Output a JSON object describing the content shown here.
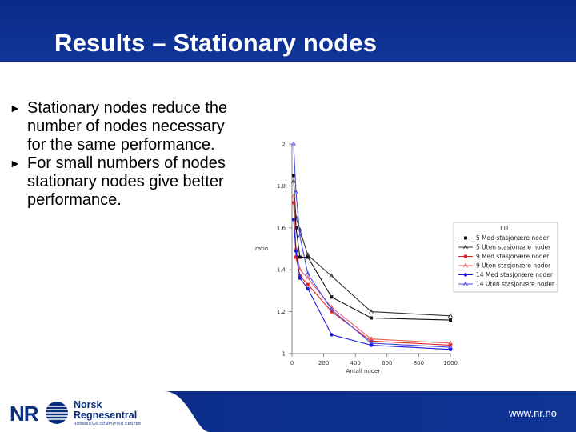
{
  "slide": {
    "title": "Results – Stationary nodes",
    "bullets": [
      "Stationary nodes reduce the number of nodes necessary for the same performance.",
      "For small numbers of nodes stationary nodes give better performance."
    ],
    "bullet_icon": "right-triangle-icon"
  },
  "footer": {
    "logo_mark": "NR",
    "logo_line1": "Norsk",
    "logo_line2": "Regnesentral",
    "logo_sub": "NORWEGIAN COMPUTING CENTER",
    "url": "www.nr.no",
    "brand_color": "#0b2f7d"
  },
  "chart_data": {
    "type": "line",
    "xlabel": "Antall noder",
    "ylabel": "ratio",
    "xlim": [
      0,
      1000
    ],
    "ylim": [
      1,
      2
    ],
    "xticks": [
      0,
      200,
      400,
      600,
      800,
      1000
    ],
    "xtick_labels": [
      "0",
      "200",
      "400",
      "600",
      "800",
      "1000"
    ],
    "yticks": [
      1,
      1.2,
      1.4,
      1.6,
      1.8,
      2
    ],
    "ytick_labels": [
      "1",
      "1.2",
      "1.4",
      "1.6",
      "1.8",
      "2"
    ],
    "legend_title": "TTL",
    "legend_position": "right",
    "series": [
      {
        "name": "5 Med stasjonære noder",
        "color": "#111111",
        "marker": "square",
        "x": [
          10,
          25,
          50,
          100,
          250,
          500,
          1000
        ],
        "y": [
          1.85,
          1.6,
          1.46,
          1.46,
          1.27,
          1.17,
          1.16
        ]
      },
      {
        "name": "5 Uten stasjonære noder",
        "color": "#333333",
        "marker": "tri",
        "x": [
          10,
          25,
          50,
          100,
          250,
          500,
          1000
        ],
        "y": [
          1.82,
          1.65,
          1.59,
          1.47,
          1.37,
          1.2,
          1.18
        ]
      },
      {
        "name": "9 Med stasjonære noder",
        "color": "#dd2222",
        "marker": "square",
        "x": [
          10,
          25,
          50,
          100,
          250,
          500,
          1000
        ],
        "y": [
          1.72,
          1.46,
          1.37,
          1.33,
          1.2,
          1.06,
          1.04
        ]
      },
      {
        "name": "9 Uten stasjonære noder",
        "color": "#e86060",
        "marker": "tri",
        "x": [
          10,
          25,
          50,
          100,
          250,
          500,
          1000
        ],
        "y": [
          1.75,
          1.5,
          1.4,
          1.36,
          1.22,
          1.07,
          1.05
        ]
      },
      {
        "name": "14 Med stasjonære noder",
        "color": "#1a1adc",
        "marker": "circle",
        "x": [
          10,
          25,
          50,
          100,
          250,
          500,
          1000
        ],
        "y": [
          1.64,
          1.49,
          1.36,
          1.31,
          1.09,
          1.04,
          1.02
        ]
      },
      {
        "name": "14 Uten stasjonære noder",
        "color": "#4a4ae8",
        "marker": "tri",
        "x": [
          10,
          25,
          50,
          100,
          250,
          500,
          1000
        ],
        "y": [
          2.0,
          1.77,
          1.56,
          1.38,
          1.21,
          1.05,
          1.03
        ]
      }
    ]
  }
}
